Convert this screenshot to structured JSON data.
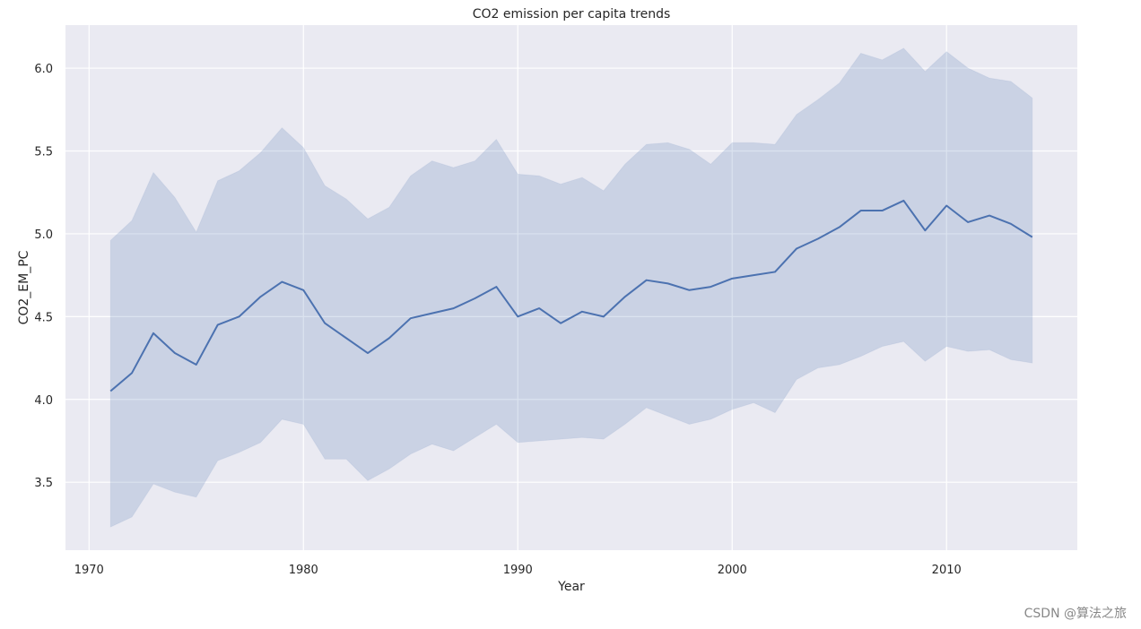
{
  "chart_data": {
    "type": "line",
    "title": "CO2 emission per capita trends",
    "xlabel": "Year",
    "ylabel": "CO2_EM_PC",
    "xlim": [
      1968.9,
      2016.1
    ],
    "ylim": [
      3.09,
      6.26
    ],
    "x_ticks": [
      1970,
      1980,
      1990,
      2000,
      2010
    ],
    "y_ticks": [
      3.5,
      4.0,
      4.5,
      5.0,
      5.5,
      6.0
    ],
    "x_tick_labels": [
      "1970",
      "1980",
      "1990",
      "2000",
      "2010"
    ],
    "y_tick_labels": [
      "3.5",
      "4.0",
      "4.5",
      "5.0",
      "5.5",
      "6.0"
    ],
    "grid": true,
    "colors": {
      "line": "#4c72b0",
      "background": "#eaeaf2",
      "grid": "#ffffff"
    },
    "x": [
      1971,
      1972,
      1973,
      1974,
      1975,
      1976,
      1977,
      1978,
      1979,
      1980,
      1981,
      1982,
      1983,
      1984,
      1985,
      1986,
      1987,
      1988,
      1989,
      1990,
      1991,
      1992,
      1993,
      1994,
      1995,
      1996,
      1997,
      1998,
      1999,
      2000,
      2001,
      2002,
      2003,
      2004,
      2005,
      2006,
      2007,
      2008,
      2009,
      2010,
      2011,
      2012,
      2013,
      2014
    ],
    "series": [
      {
        "values": [
          4.05,
          4.16,
          4.4,
          4.28,
          4.21,
          4.45,
          4.5,
          4.62,
          4.71,
          4.66,
          4.46,
          4.37,
          4.28,
          4.37,
          4.49,
          4.52,
          4.55,
          4.61,
          4.68,
          4.5,
          4.55,
          4.46,
          4.53,
          4.5,
          4.62,
          4.72,
          4.7,
          4.66,
          4.68,
          4.73,
          4.75,
          4.77,
          4.91,
          4.97,
          5.04,
          5.14,
          5.14,
          5.2,
          5.02,
          5.17,
          5.07,
          5.11,
          5.06,
          4.98
        ],
        "ci_lower": [
          3.23,
          3.29,
          3.49,
          3.44,
          3.41,
          3.63,
          3.68,
          3.74,
          3.88,
          3.85,
          3.64,
          3.64,
          3.51,
          3.58,
          3.67,
          3.73,
          3.69,
          3.77,
          3.85,
          3.74,
          3.75,
          3.76,
          3.77,
          3.76,
          3.85,
          3.95,
          3.9,
          3.85,
          3.88,
          3.94,
          3.98,
          3.92,
          4.12,
          4.19,
          4.21,
          4.26,
          4.32,
          4.35,
          4.23,
          4.32,
          4.29,
          4.3,
          4.24,
          4.22
        ],
        "ci_upper": [
          4.96,
          5.08,
          5.37,
          5.22,
          5.01,
          5.32,
          5.38,
          5.49,
          5.64,
          5.52,
          5.29,
          5.21,
          5.09,
          5.16,
          5.35,
          5.44,
          5.4,
          5.44,
          5.57,
          5.36,
          5.35,
          5.3,
          5.34,
          5.26,
          5.42,
          5.54,
          5.55,
          5.51,
          5.42,
          5.55,
          5.55,
          5.54,
          5.72,
          5.81,
          5.91,
          6.09,
          6.05,
          6.12,
          5.98,
          6.1,
          6.0,
          5.94,
          5.92,
          5.82
        ]
      }
    ]
  },
  "watermark": "CSDN @算法之旅"
}
